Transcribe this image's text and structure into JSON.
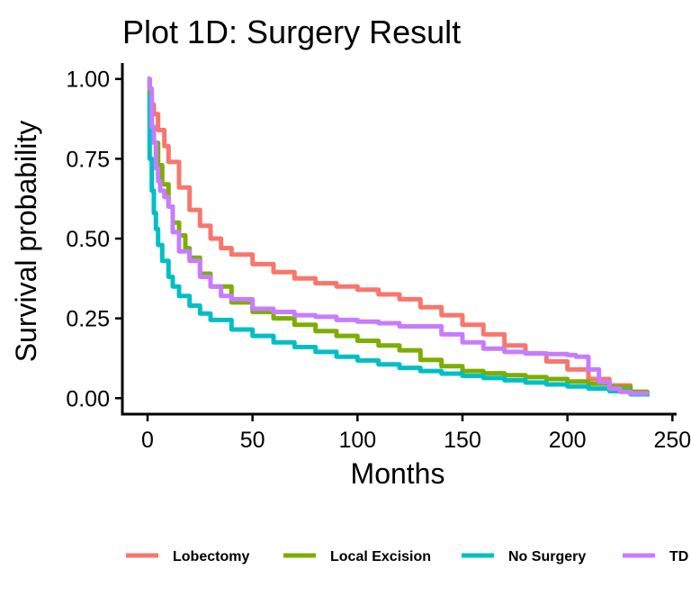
{
  "chart_data": {
    "type": "line",
    "title": "Plot 1D: Surgery Result",
    "xlabel": "Months",
    "ylabel": "Survival probability",
    "xlim": [
      -12,
      252
    ],
    "ylim": [
      -0.05,
      1.05
    ],
    "xticks": [
      0,
      50,
      100,
      150,
      200,
      250
    ],
    "xtick_labels": [
      "0",
      "50",
      "100",
      "150",
      "200",
      "250"
    ],
    "yticks": [
      0,
      0.25,
      0.5,
      0.75,
      1.0
    ],
    "ytick_labels": [
      "0.00",
      "0.25",
      "0.50",
      "0.75",
      "1.00"
    ],
    "grid": false,
    "legend_position": "bottom",
    "step": true,
    "series": [
      {
        "name": "Lobectomy",
        "color": "#F8766D",
        "x": [
          0,
          1,
          2,
          3,
          5,
          8,
          10,
          15,
          20,
          25,
          30,
          35,
          40,
          50,
          60,
          70,
          80,
          90,
          100,
          110,
          120,
          130,
          140,
          150,
          160,
          170,
          180,
          190,
          200,
          210,
          220,
          230,
          238
        ],
        "y": [
          1.0,
          0.95,
          0.92,
          0.89,
          0.84,
          0.79,
          0.74,
          0.66,
          0.59,
          0.54,
          0.5,
          0.47,
          0.45,
          0.42,
          0.395,
          0.375,
          0.36,
          0.35,
          0.34,
          0.325,
          0.31,
          0.285,
          0.26,
          0.23,
          0.2,
          0.165,
          0.14,
          0.115,
          0.09,
          0.06,
          0.04,
          0.02,
          0.01
        ]
      },
      {
        "name": "Local Excision",
        "color": "#7CAE00",
        "x": [
          0,
          1,
          2,
          3,
          5,
          7,
          10,
          12,
          15,
          18,
          20,
          25,
          30,
          40,
          50,
          60,
          70,
          80,
          90,
          100,
          110,
          120,
          130,
          140,
          150,
          160,
          170,
          180,
          190,
          200,
          210,
          220,
          230,
          238
        ],
        "y": [
          1.0,
          0.9,
          0.85,
          0.8,
          0.73,
          0.67,
          0.6,
          0.55,
          0.51,
          0.47,
          0.44,
          0.39,
          0.35,
          0.3,
          0.27,
          0.25,
          0.23,
          0.21,
          0.195,
          0.18,
          0.165,
          0.15,
          0.12,
          0.1,
          0.085,
          0.078,
          0.072,
          0.066,
          0.06,
          0.052,
          0.045,
          0.035,
          0.02,
          0.01
        ]
      },
      {
        "name": "No Surgery",
        "color": "#00BFC4",
        "x": [
          0,
          1,
          2,
          3,
          4,
          5,
          7,
          10,
          12,
          15,
          20,
          25,
          30,
          40,
          50,
          60,
          70,
          80,
          90,
          100,
          110,
          120,
          130,
          140,
          150,
          160,
          170,
          180,
          190,
          200,
          210,
          220,
          230,
          238
        ],
        "y": [
          0.95,
          0.75,
          0.65,
          0.58,
          0.53,
          0.48,
          0.43,
          0.38,
          0.35,
          0.32,
          0.29,
          0.265,
          0.245,
          0.215,
          0.195,
          0.175,
          0.16,
          0.145,
          0.13,
          0.118,
          0.106,
          0.095,
          0.085,
          0.077,
          0.07,
          0.063,
          0.056,
          0.049,
          0.043,
          0.037,
          0.03,
          0.022,
          0.012,
          0.005
        ]
      },
      {
        "name": "TD",
        "color": "#C77CFF",
        "x": [
          0,
          1,
          2,
          3,
          4,
          5,
          6,
          8,
          10,
          12,
          15,
          20,
          25,
          30,
          35,
          40,
          50,
          60,
          70,
          80,
          90,
          100,
          110,
          120,
          140,
          150,
          160,
          170,
          180,
          190,
          200,
          204,
          210,
          215,
          220,
          225,
          230,
          238
        ],
        "y": [
          1.0,
          0.97,
          0.85,
          0.8,
          0.72,
          0.68,
          0.65,
          0.63,
          0.6,
          0.52,
          0.46,
          0.43,
          0.38,
          0.35,
          0.32,
          0.31,
          0.28,
          0.27,
          0.26,
          0.255,
          0.245,
          0.24,
          0.235,
          0.225,
          0.2,
          0.175,
          0.155,
          0.145,
          0.14,
          0.138,
          0.135,
          0.13,
          0.09,
          0.05,
          0.03,
          0.02,
          0.015,
          0.01
        ]
      }
    ]
  }
}
